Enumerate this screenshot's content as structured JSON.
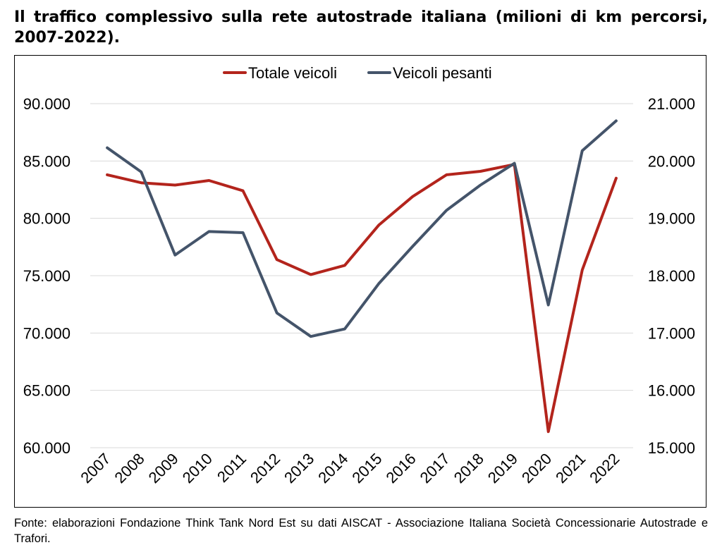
{
  "title": "Il traffico complessivo sulla rete autostrade italiana (milioni di km percorsi, 2007-2022).",
  "source": "Fonte: elaborazioni Fondazione Think Tank Nord Est su dati AISCAT - Associazione Italiana Società Concessionarie Autostrade e Trafori.",
  "chart_data": {
    "type": "line",
    "title": "",
    "xlabel": "",
    "ylabel": "",
    "categories": [
      "2007",
      "2008",
      "2009",
      "2010",
      "2011",
      "2012",
      "2013",
      "2014",
      "2015",
      "2016",
      "2017",
      "2018",
      "2019",
      "2020",
      "2021",
      "2022"
    ],
    "y_left": {
      "min": 60000,
      "max": 90000,
      "ticks": [
        60000,
        65000,
        70000,
        75000,
        80000,
        85000,
        90000
      ],
      "tick_labels": [
        "60.000",
        "65.000",
        "70.000",
        "75.000",
        "80.000",
        "85.000",
        "90.000"
      ]
    },
    "y_right": {
      "min": 15000,
      "max": 21000,
      "ticks": [
        15000,
        16000,
        17000,
        18000,
        19000,
        20000,
        21000
      ],
      "tick_labels": [
        "15.000",
        "16.000",
        "17.000",
        "18.000",
        "19.000",
        "20.000",
        "21.000"
      ]
    },
    "grid": "horizontal",
    "legend_position": "top-center",
    "series": [
      {
        "name": "Totale veicoli",
        "axis": "left",
        "color": "#b3241c",
        "values": [
          83800,
          83100,
          82900,
          83300,
          82400,
          76400,
          75100,
          75900,
          79400,
          81900,
          83800,
          84100,
          84700,
          61400,
          75500,
          83500
        ]
      },
      {
        "name": "Veicoli pesanti",
        "axis": "right",
        "color": "#44546a",
        "values": [
          20230,
          19810,
          18360,
          18770,
          18750,
          17350,
          16940,
          17070,
          17860,
          18510,
          19140,
          19580,
          19960,
          17490,
          20180,
          20700
        ]
      }
    ]
  }
}
